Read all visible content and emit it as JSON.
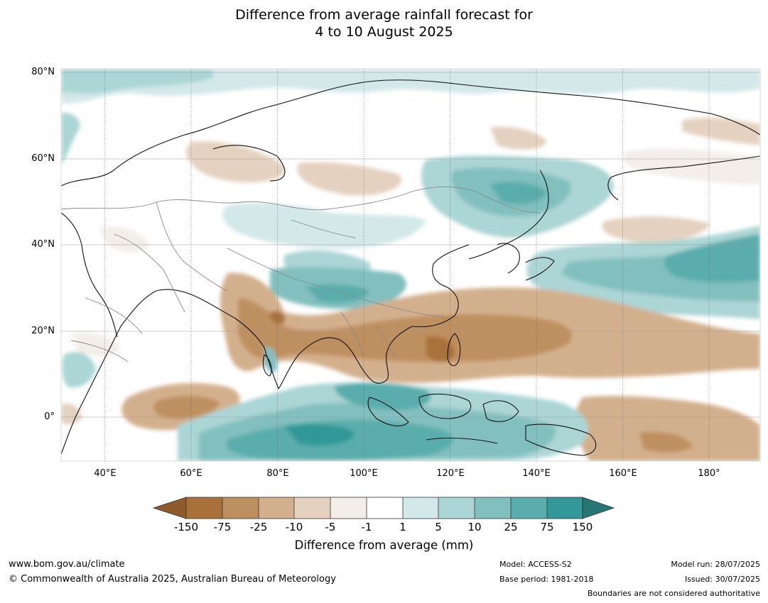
{
  "title": {
    "line1": "Difference from average rainfall forecast for",
    "line2": "4 to 10 August 2025"
  },
  "axes": {
    "lat_labels": [
      "80°N",
      "60°N",
      "40°N",
      "20°N",
      "0°"
    ],
    "lon_labels": [
      "40°E",
      "60°E",
      "80°E",
      "100°E",
      "120°E",
      "140°E",
      "160°E",
      "180°"
    ]
  },
  "colorbar": {
    "title": "Difference from average (mm)",
    "labels": [
      "-150",
      "-75",
      "-25",
      "-10",
      "-5",
      "-1",
      "1",
      "5",
      "10",
      "25",
      "75",
      "150"
    ],
    "colors": [
      "#a9713a",
      "#bf905f",
      "#d3b08d",
      "#e4d1bf",
      "#f3eee8",
      "#ffffff",
      "#d3e8e8",
      "#acd5d5",
      "#82c0bf",
      "#5aadac",
      "#339897",
      "#257675"
    ]
  },
  "footer": {
    "url": "www.bom.gov.au/climate",
    "copyright": "© Commonwealth of Australia 2025, Australian Bureau of Meteorology",
    "model": "Model: ACCESS-S2",
    "base_period": "Base period: 1981-2018",
    "model_run": "Model run: 28/07/2025",
    "issued": "Issued: 30/07/2025",
    "disclaimer": "Boundaries are not considered authoritative"
  }
}
